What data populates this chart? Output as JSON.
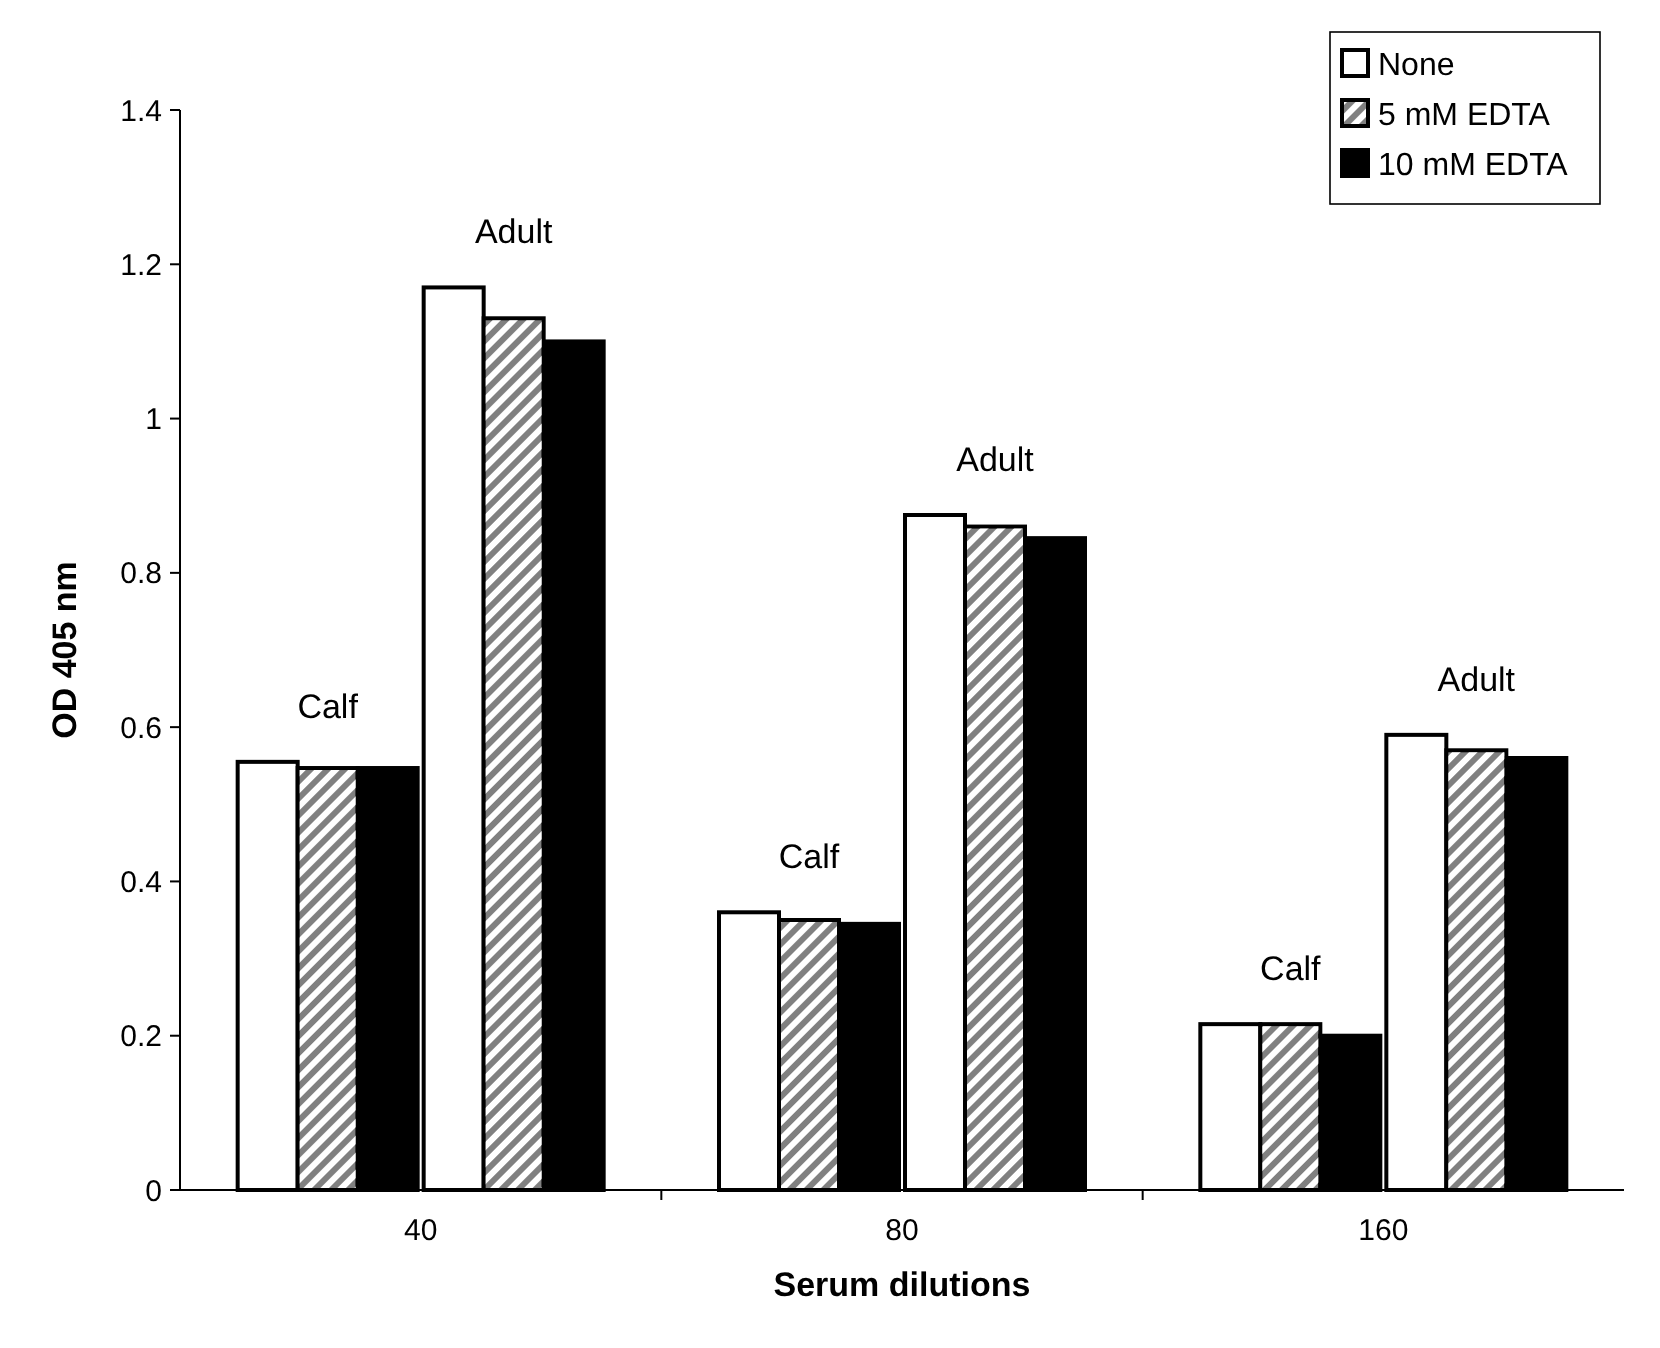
{
  "chart_data": {
    "type": "bar",
    "xlabel": "Serum dilutions",
    "ylabel": "OD 405 nm",
    "categories": [
      "40",
      "80",
      "160"
    ],
    "series": [
      {
        "name": "None",
        "color": "#ffffff",
        "values": [
          0.555,
          0.36,
          0.215
        ]
      },
      {
        "name": "5 mM EDTA",
        "color": "#808080",
        "values": [
          0.547,
          0.35,
          0.215
        ]
      },
      {
        "name": "10 mM EDTA",
        "color": "#000000",
        "values": [
          0.547,
          0.345,
          0.2
        ]
      },
      {
        "color": "#ffffff",
        "values": [
          1.17,
          0.875,
          0.59
        ]
      },
      {
        "color": "#808080",
        "values": [
          1.13,
          0.86,
          0.57
        ]
      },
      {
        "color": "#000000",
        "values": [
          1.1,
          0.845,
          0.56
        ]
      }
    ],
    "ylim": [
      0,
      1.4
    ],
    "yticks": [
      0,
      0.2,
      0.4,
      0.6,
      0.8,
      1,
      1.2,
      1.4
    ],
    "grid": false,
    "legend": "top right",
    "annotations": [
      {
        "text": "Calf",
        "x": "40",
        "y": 0.555
      },
      {
        "text": "Adult",
        "x": "40",
        "y": 1.17
      },
      {
        "text": "Calf",
        "x": "80",
        "y": 0.36
      },
      {
        "text": "Adult",
        "x": "80",
        "y": 0.875
      },
      {
        "text": "Calf",
        "x": "160",
        "y": 0.215
      },
      {
        "text": "Adult",
        "x": "160",
        "y": 0.59
      }
    ]
  }
}
